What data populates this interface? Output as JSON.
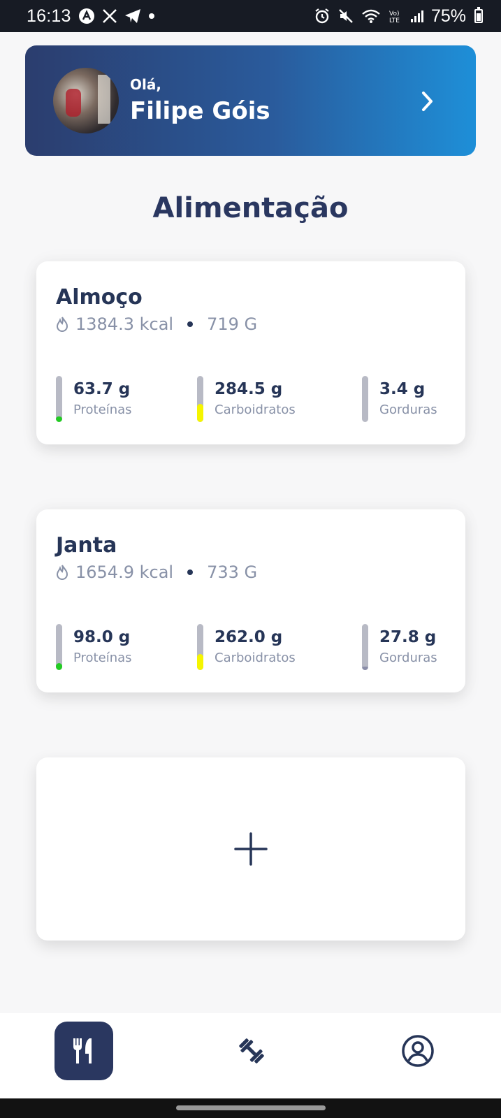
{
  "status_bar": {
    "time": "16:13",
    "battery": "75%",
    "left_icons": [
      "app-notification-icon",
      "x-icon",
      "telegram-icon",
      "dot-icon"
    ],
    "right_icons": [
      "alarm-icon",
      "mute-icon",
      "wifi-icon",
      "volte-icon",
      "signal-icon",
      "battery-icon"
    ]
  },
  "profile": {
    "greeting": "Olá,",
    "name": "Filipe Góis"
  },
  "page_title": "Alimentação",
  "meals": [
    {
      "name": "Almoço",
      "kcal": "1384.3 kcal",
      "weight": "719 G",
      "macros": [
        {
          "value": "63.7 g",
          "label": "Proteínas",
          "level": 0.12,
          "color": "#22cc22"
        },
        {
          "value": "284.5 g",
          "label": "Carboidratos",
          "level": 0.4,
          "color": "#f5f500"
        },
        {
          "value": "3.4 g",
          "label": "Gorduras",
          "level": 0.0,
          "color": "#8a8da8"
        }
      ]
    },
    {
      "name": "Janta",
      "kcal": "1654.9 kcal",
      "weight": "733 G",
      "macros": [
        {
          "value": "98.0 g",
          "label": "Proteínas",
          "level": 0.15,
          "color": "#22cc22"
        },
        {
          "value": "262.0 g",
          "label": "Carboidratos",
          "level": 0.35,
          "color": "#f5f500"
        },
        {
          "value": "27.8 g",
          "label": "Gorduras",
          "level": 0.03,
          "color": "#8a8da8"
        }
      ]
    }
  ],
  "add_card": {
    "icon": "plus-icon"
  },
  "nav": {
    "items": [
      {
        "icon": "fork-knife-icon",
        "active": true
      },
      {
        "icon": "dumbbell-icon",
        "active": false
      },
      {
        "icon": "user-circle-icon",
        "active": false
      }
    ],
    "active_color": "#2a3760"
  }
}
